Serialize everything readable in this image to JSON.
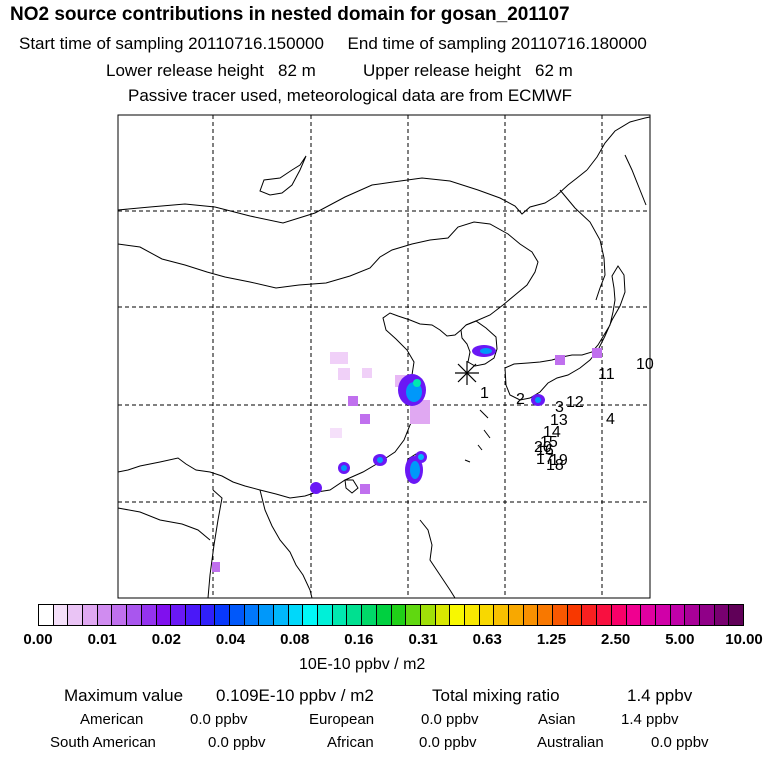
{
  "header": {
    "title": "NO2 source contributions in nested domain for gosan_201107",
    "sampling_line": "Start time of sampling 20110716.150000     End time of sampling 20110716.180000",
    "release_line": "Lower release height   82 m          Upper release height   62 m",
    "tracer_line": "Passive tracer used, meteorological data are from ECMWF"
  },
  "map": {
    "receptor_marker": "asterisk-icon",
    "trajectory_labels": [
      "1",
      "2",
      "3",
      "4",
      "10",
      "11",
      "12",
      "13",
      "14",
      "15",
      "16",
      "17",
      "18",
      "19",
      "20"
    ]
  },
  "colorbar": {
    "ticks": [
      "0.00",
      "0.01",
      "0.02",
      "0.04",
      "0.08",
      "0.16",
      "0.31",
      "0.63",
      "1.25",
      "2.50",
      "5.00",
      "10.00"
    ],
    "unit": "10E-10 ppbv / m2",
    "colors": [
      "#ffffff",
      "#f5e0fa",
      "#eac4f5",
      "#e0a8f2",
      "#d08cf0",
      "#c070ee",
      "#a956ee",
      "#9433ef",
      "#8010ee",
      "#6a18f5",
      "#4a18f8",
      "#3020fa",
      "#0838fc",
      "#0058fa",
      "#0078fc",
      "#0098fa",
      "#00b8fc",
      "#00d8fa",
      "#00f8f8",
      "#00f0d8",
      "#00e8b0",
      "#00e090",
      "#00d868",
      "#00d040",
      "#20d018",
      "#60d810",
      "#a0e008",
      "#d8e800",
      "#f8f800",
      "#f8e800",
      "#f8d800",
      "#f8c000",
      "#f8a800",
      "#f89000",
      "#f87800",
      "#f85800",
      "#f83800",
      "#f82020",
      "#f81040",
      "#f80068",
      "#f00090",
      "#e000a0",
      "#d000a8",
      "#c000a8",
      "#a80098",
      "#900088",
      "#780070",
      "#600058"
    ]
  },
  "summary": {
    "max_label": "Maximum value",
    "max_value": "0.109E-10 ppbv / m2",
    "total_label": "Total mixing ratio",
    "total_value": "1.4 ppbv",
    "regions": [
      {
        "name": "American",
        "value": "0.0 ppbv"
      },
      {
        "name": "European",
        "value": "0.0 ppbv"
      },
      {
        "name": "Asian",
        "value": "1.4 ppbv"
      },
      {
        "name": "South American",
        "value": "0.0 ppbv"
      },
      {
        "name": "African",
        "value": "0.0 ppbv"
      },
      {
        "name": "Australian",
        "value": "0.0 ppbv"
      }
    ]
  }
}
